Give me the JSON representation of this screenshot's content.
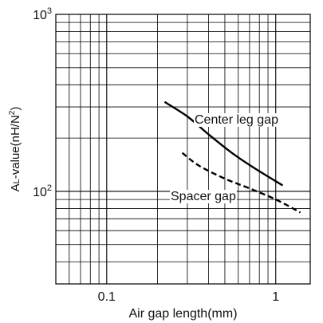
{
  "chart_data": {
    "type": "line",
    "title": "",
    "xlabel": "Air gap length(mm)",
    "ylabel_prefix": "A",
    "ylabel_sub": "L",
    "ylabel_mid": "-value(nH/N",
    "ylabel_sup": "2",
    "ylabel_end": ")",
    "x_scale": "log",
    "y_scale": "log",
    "xlim": [
      0.05,
      1.6
    ],
    "ylim": [
      30,
      1000
    ],
    "grid": true,
    "x_ticks": [
      {
        "value": 0.1,
        "label": "0.1"
      },
      {
        "value": 1,
        "label": "1"
      }
    ],
    "y_ticks": [
      {
        "value": 100,
        "base": "10",
        "exp": "2"
      },
      {
        "value": 1000,
        "base": "10",
        "exp": "3"
      }
    ],
    "series": [
      {
        "name": "Center leg gap",
        "style": "solid",
        "color": "#000000",
        "points": [
          [
            0.22,
            320
          ],
          [
            0.3,
            265
          ],
          [
            0.4,
            210
          ],
          [
            0.55,
            165
          ],
          [
            0.75,
            135
          ],
          [
            1.1,
            108
          ]
        ]
      },
      {
        "name": "Spacer gap",
        "style": "dashed",
        "color": "#000000",
        "points": [
          [
            0.28,
            165
          ],
          [
            0.35,
            140
          ],
          [
            0.5,
            118
          ],
          [
            0.7,
            104
          ],
          [
            1.0,
            90
          ],
          [
            1.4,
            76
          ]
        ]
      }
    ],
    "annotations": [
      {
        "text": "Center leg gap",
        "series": 0
      },
      {
        "text": "Spacer gap",
        "series": 1
      }
    ]
  }
}
